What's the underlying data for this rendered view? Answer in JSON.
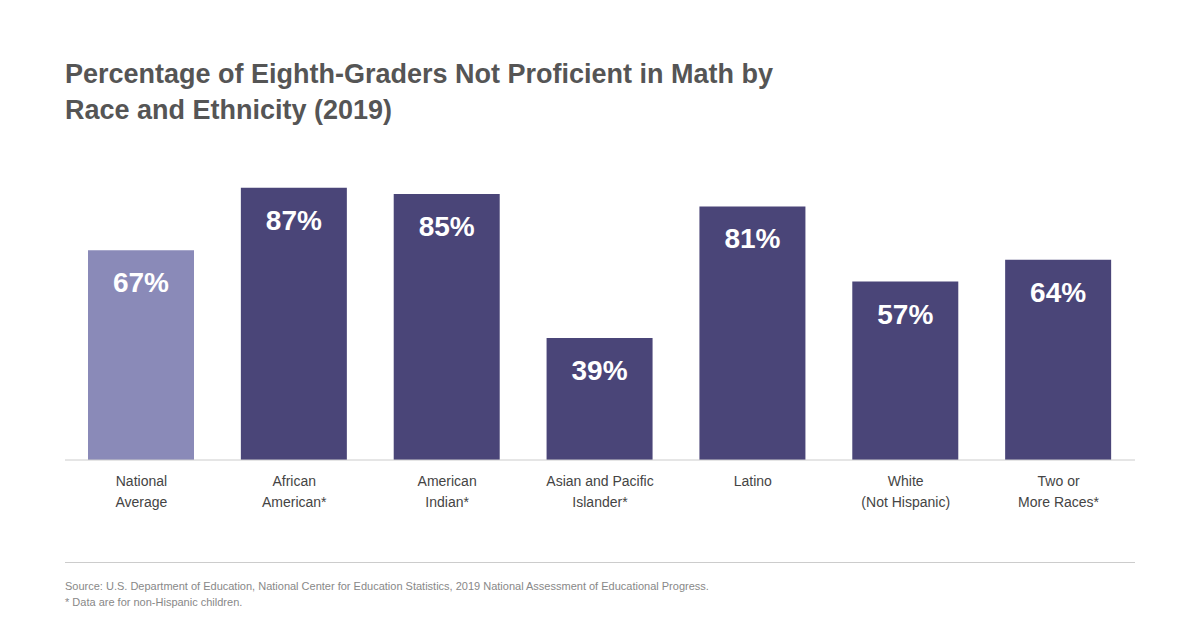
{
  "chart_data": {
    "type": "bar",
    "title": "Percentage of Eighth-Graders Not Proficient in Math by\nRace and Ethnicity (2019)",
    "categories": [
      "National\nAverage",
      "African\nAmerican*",
      "American\nIndian*",
      "Asian and Pacific\nIslander*",
      "Latino",
      "White\n(Not Hispanic)",
      "Two or\nMore Races*"
    ],
    "values": [
      67,
      87,
      85,
      39,
      81,
      57,
      64
    ],
    "value_labels": [
      "67%",
      "87%",
      "85%",
      "39%",
      "81%",
      "57%",
      "64%"
    ],
    "colors": [
      "#8a8ab8",
      "#4a4578",
      "#4a4578",
      "#4a4578",
      "#4a4578",
      "#4a4578",
      "#4a4578"
    ],
    "ylim": [
      0,
      100
    ],
    "grid": false,
    "data_labels": true,
    "tick_labels": "x",
    "source": "Source: U.S. Department of Education, National Center for Education Statistics, 2019 National Assessment of Educational Progress.",
    "note": "* Data are for non-Hispanic children."
  }
}
